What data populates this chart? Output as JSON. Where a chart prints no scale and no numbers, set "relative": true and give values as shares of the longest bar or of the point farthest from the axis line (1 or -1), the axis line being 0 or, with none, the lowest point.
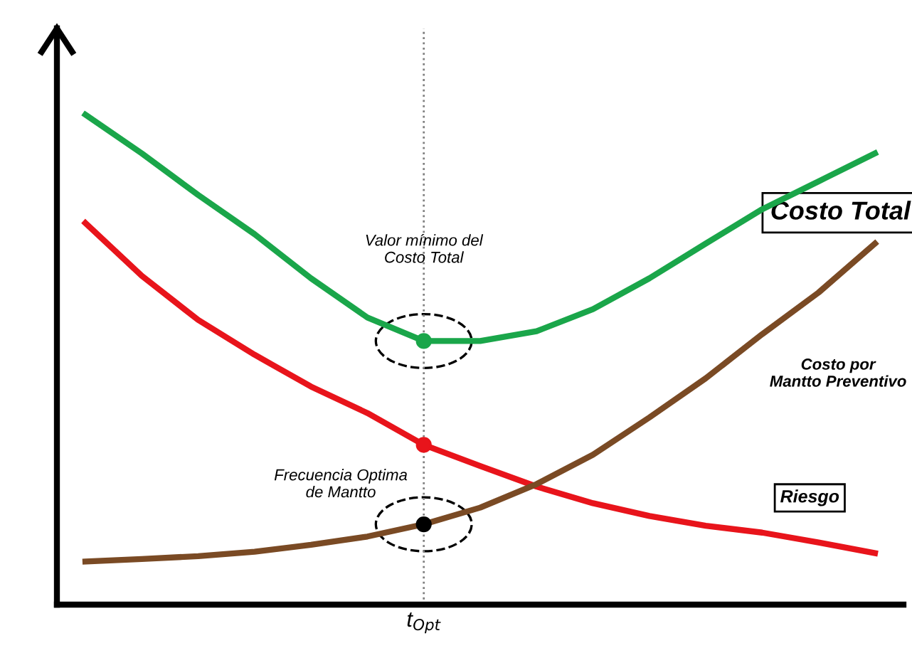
{
  "chart_data": {
    "type": "line",
    "relative": true,
    "legend": false,
    "grid": false,
    "marker": "none",
    "line_style": "solid",
    "categories": [
      null,
      null,
      null,
      null,
      null,
      null,
      null,
      null,
      null,
      null,
      null,
      null,
      null,
      null,
      null
    ],
    "series": [
      {
        "name": "Costo Total",
        "color": "#1aa64a",
        "values": [
          1.0,
          0.921,
          0.836,
          0.756,
          0.666,
          0.586,
          0.538,
          0.538,
          0.558,
          0.603,
          0.666,
          0.737,
          0.807,
          0.864,
          0.921
        ]
      },
      {
        "name": "Riesgo",
        "color": "#e8141b",
        "values": [
          0.779,
          0.671,
          0.581,
          0.51,
          0.445,
          0.391,
          0.326,
          0.283,
          0.241,
          0.207,
          0.181,
          0.161,
          0.147,
          0.127,
          0.105
        ]
      },
      {
        "name": "Costo por\nMantto Preventivo",
        "color": "#7a4a24",
        "values": [
          0.088,
          0.093,
          0.099,
          0.108,
          0.122,
          0.139,
          0.164,
          0.198,
          0.246,
          0.306,
          0.382,
          0.462,
          0.552,
          0.637,
          0.737
        ]
      }
    ],
    "annotations": [
      "Valor mínimo del\nCosto Total",
      "Frecuencia Optima\nde Mantto",
      "t$_{Opt}$"
    ]
  }
}
